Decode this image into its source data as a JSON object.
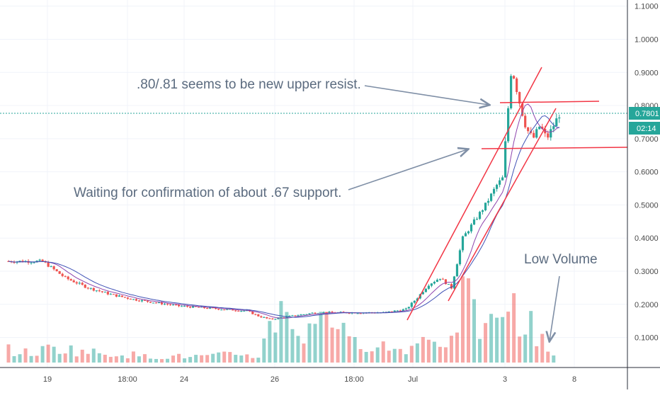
{
  "chart_data": {
    "type": "candlestick",
    "x_ticks": [
      "19",
      "18:00",
      "24",
      "26",
      "18:00",
      "Jul",
      "3",
      "8"
    ],
    "y_ticks": [
      "0.1000",
      "0.2000",
      "0.3000",
      "0.4000",
      "0.5000",
      "0.6000",
      "0.7000",
      "0.8000",
      "0.9000",
      "1.0000",
      "1.1000"
    ],
    "ylim": [
      0.05,
      1.11
    ],
    "current_price": "0.7801",
    "countdown": "02:14",
    "price_series": [
      {
        "x": 0,
        "y": 0.33
      },
      {
        "x": 3,
        "y": 0.33
      },
      {
        "x": 5,
        "y": 0.28
      },
      {
        "x": 7,
        "y": 0.25
      },
      {
        "x": 9,
        "y": 0.23
      },
      {
        "x": 11,
        "y": 0.215
      },
      {
        "x": 13,
        "y": 0.205
      },
      {
        "x": 15,
        "y": 0.195
      },
      {
        "x": 17,
        "y": 0.19
      },
      {
        "x": 19,
        "y": 0.185
      },
      {
        "x": 21,
        "y": 0.18
      },
      {
        "x": 22,
        "y": 0.165
      },
      {
        "x": 23,
        "y": 0.155
      },
      {
        "x": 25,
        "y": 0.165
      },
      {
        "x": 27,
        "y": 0.175
      },
      {
        "x": 29,
        "y": 0.175
      },
      {
        "x": 31,
        "y": 0.175
      },
      {
        "x": 33,
        "y": 0.175
      },
      {
        "x": 35,
        "y": 0.185
      },
      {
        "x": 36,
        "y": 0.22
      },
      {
        "x": 37,
        "y": 0.26
      },
      {
        "x": 38,
        "y": 0.28
      },
      {
        "x": 39,
        "y": 0.25
      },
      {
        "x": 40,
        "y": 0.4
      },
      {
        "x": 41,
        "y": 0.45
      },
      {
        "x": 42,
        "y": 0.5
      },
      {
        "x": 43,
        "y": 0.56
      },
      {
        "x": 43.5,
        "y": 0.58
      },
      {
        "x": 44.3,
        "y": 0.92
      },
      {
        "x": 45,
        "y": 0.81
      },
      {
        "x": 45.6,
        "y": 0.73
      },
      {
        "x": 46.2,
        "y": 0.7
      },
      {
        "x": 46.8,
        "y": 0.74
      },
      {
        "x": 47.4,
        "y": 0.7
      },
      {
        "x": 48,
        "y": 0.74
      },
      {
        "x": 48.6,
        "y": 0.78
      }
    ],
    "volume_series": [
      {
        "x": 0,
        "v": 4
      },
      {
        "x": 2,
        "v": 3
      },
      {
        "x": 4,
        "v": 5
      },
      {
        "x": 6,
        "v": 4
      },
      {
        "x": 8,
        "v": 3
      },
      {
        "x": 10,
        "v": 3
      },
      {
        "x": 12,
        "v": 2
      },
      {
        "x": 14,
        "v": 2
      },
      {
        "x": 16,
        "v": 2
      },
      {
        "x": 18,
        "v": 2
      },
      {
        "x": 20,
        "v": 3
      },
      {
        "x": 22,
        "v": 2
      },
      {
        "x": 24,
        "v": 20
      },
      {
        "x": 25,
        "v": 16
      },
      {
        "x": 26,
        "v": 6
      },
      {
        "x": 28,
        "v": 22
      },
      {
        "x": 29,
        "v": 12
      },
      {
        "x": 30,
        "v": 6
      },
      {
        "x": 32,
        "v": 7
      },
      {
        "x": 34,
        "v": 4
      },
      {
        "x": 36,
        "v": 6
      },
      {
        "x": 37,
        "v": 10
      },
      {
        "x": 38,
        "v": 8
      },
      {
        "x": 39,
        "v": 6
      },
      {
        "x": 40,
        "v": 23
      },
      {
        "x": 41,
        "v": 14
      },
      {
        "x": 42,
        "v": 11
      },
      {
        "x": 43,
        "v": 12
      },
      {
        "x": 44,
        "v": 23
      },
      {
        "x": 45,
        "v": 10
      },
      {
        "x": 46,
        "v": 12
      },
      {
        "x": 47,
        "v": 9
      },
      {
        "x": 48,
        "v": 2
      }
    ],
    "annotations": [
      ".80/.81 seems to be new upper resist.",
      "Waiting for confirmation of about .67 support.",
      "Low Volume"
    ]
  },
  "colors": {
    "up": "#26a69a",
    "down": "#ef5350",
    "trend_line": "#f23645",
    "annotation_text": "#5b6b7f",
    "arrow": "#7f8fa6",
    "axis_text": "#4a4a4a",
    "grid": "#f0f3fa",
    "price_label_bg": "#26a69a"
  }
}
